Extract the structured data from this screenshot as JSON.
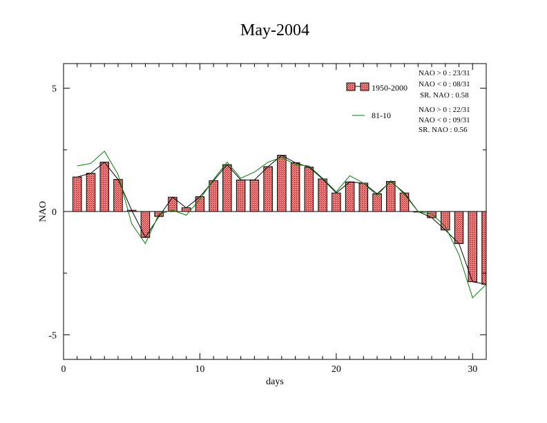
{
  "chart_data": {
    "type": "bar",
    "title": "May-2004",
    "xlabel": "days",
    "ylabel": "NAO",
    "xlim": [
      0,
      31
    ],
    "ylim": [
      -6,
      6
    ],
    "x_ticks": [
      0,
      10,
      20,
      30
    ],
    "x_tick_labels": [
      "0",
      "10",
      "20",
      "30"
    ],
    "y_ticks": [
      -5,
      0,
      5
    ],
    "y_tick_labels": [
      "-5",
      "0",
      "5"
    ],
    "grid": false,
    "legend_placement": "top-right",
    "colors": {
      "bar_fill": "#f08080",
      "bar_pattern": "#8b1a1a",
      "line_1950": "#000000",
      "line_8110": "#008000"
    },
    "series": [
      {
        "name": "1950-2000",
        "type": "bar",
        "x": [
          1,
          2,
          3,
          4,
          5,
          6,
          7,
          8,
          9,
          10,
          11,
          12,
          13,
          14,
          15,
          16,
          17,
          18,
          19,
          20,
          21,
          22,
          23,
          24,
          25,
          26,
          27,
          28,
          29,
          30,
          31
        ],
        "values": [
          1.4,
          1.55,
          2.0,
          1.3,
          0.05,
          -1.05,
          -0.2,
          0.58,
          0.15,
          0.6,
          1.25,
          1.9,
          1.28,
          1.28,
          1.82,
          2.28,
          1.98,
          1.8,
          1.32,
          0.75,
          1.2,
          1.15,
          0.72,
          1.22,
          0.75,
          0.0,
          -0.25,
          -0.75,
          -1.3,
          -2.85,
          -2.95
        ]
      },
      {
        "name": "81-10",
        "type": "line",
        "x": [
          1,
          2,
          3,
          4,
          5,
          6,
          7,
          8,
          9,
          10,
          11,
          12,
          13,
          14,
          15,
          16,
          17,
          18,
          19,
          20,
          21,
          22,
          23,
          24,
          25,
          26,
          27,
          28,
          29,
          30,
          31
        ],
        "values": [
          1.85,
          1.95,
          2.45,
          1.5,
          -0.5,
          -1.3,
          -0.1,
          0.05,
          -0.15,
          0.5,
          1.3,
          2.0,
          1.35,
          1.6,
          2.0,
          2.2,
          1.9,
          1.85,
          1.35,
          0.8,
          1.45,
          1.15,
          0.65,
          1.25,
          0.7,
          0.0,
          -0.1,
          -0.6,
          -1.75,
          -3.5,
          -2.95
        ]
      }
    ],
    "legend": [
      {
        "label": "1950-2000",
        "stats": [
          "NAO > 0 : 23/31",
          "NAO < 0 : 08/31",
          "SR. NAO :  0.58"
        ]
      },
      {
        "label": "81-10",
        "stats": [
          "NAO > 0 : 22/31",
          "NAO < 0 : 09/31",
          "SR. NAO :  0.56"
        ]
      }
    ]
  }
}
